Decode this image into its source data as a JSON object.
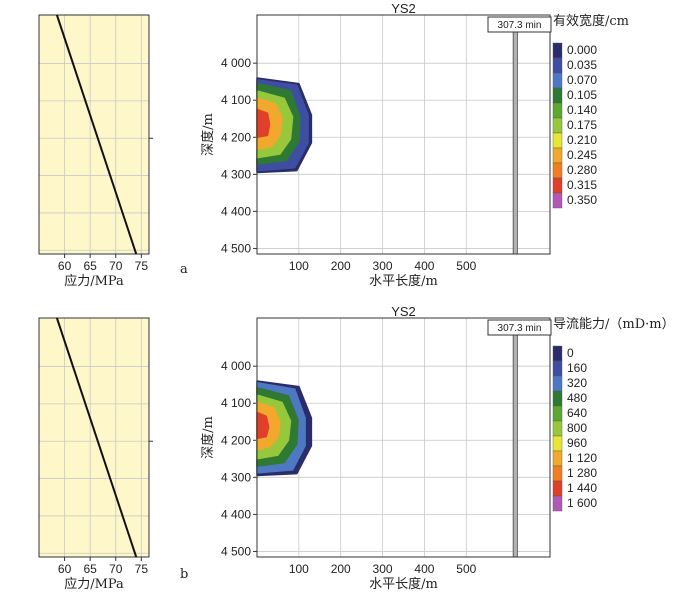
{
  "chart_data": [
    {
      "panel": "a",
      "stress_plot": {
        "type": "line",
        "xlabel": "应力/MPa",
        "xticks": [
          60,
          65,
          70,
          75
        ],
        "xlim": [
          55,
          76.5
        ],
        "ylim": [
          3870,
          4510
        ],
        "x": [
          58.5,
          74
        ],
        "y": [
          3870,
          4510
        ]
      },
      "contour_plot": {
        "type": "heatmap",
        "title": "YS2",
        "xlabel": "水平长度/m",
        "ylabel": "深度/m",
        "xticks": [
          100,
          200,
          300,
          400,
          500
        ],
        "xlim": [
          0,
          700
        ],
        "yticks": [
          "4 000",
          "4 100",
          "4 200",
          "4 300",
          "4 400",
          "4 500"
        ],
        "ytick_values": [
          4000,
          4100,
          4200,
          4300,
          4400,
          4500
        ],
        "ylim": [
          3870,
          4515
        ],
        "time_label": "307.3 min",
        "legend_title": "有效宽度/cm",
        "legend_values": [
          "0.000",
          "0.035",
          "0.070",
          "0.105",
          "0.140",
          "0.175",
          "0.210",
          "0.245",
          "0.280",
          "0.315",
          "0.350"
        ],
        "contours": [
          {
            "level": 0,
            "x": [
              0,
              100,
              130,
              130,
              95,
              0
            ],
            "y": [
              4040,
              4055,
              4140,
              4215,
              4290,
              4295
            ]
          },
          {
            "level": 1,
            "x": [
              0,
              95,
              122,
              122,
              90,
              0
            ],
            "y": [
              4045,
              4060,
              4140,
              4215,
              4282,
              4290
            ]
          },
          {
            "level": 3,
            "x": [
              0,
              80,
              102,
              100,
              70,
              0
            ],
            "y": [
              4055,
              4075,
              4145,
              4210,
              4262,
              4272
            ]
          },
          {
            "level": 5,
            "x": [
              0,
              65,
              85,
              80,
              55,
              0
            ],
            "y": [
              4075,
              4095,
              4145,
              4205,
              4245,
              4255
            ]
          },
          {
            "level": 7,
            "x": [
              0,
              45,
              60,
              55,
              35,
              0
            ],
            "y": [
              4095,
              4110,
              4150,
              4195,
              4225,
              4232
            ]
          },
          {
            "level": 9,
            "x": [
              0,
              25,
              30,
              25,
              0
            ],
            "y": [
              4125,
              4135,
              4165,
              4195,
              4200
            ]
          }
        ],
        "well": {
          "x_start": 612,
          "x_end": 622
        }
      }
    },
    {
      "panel": "b",
      "stress_plot": {
        "type": "line",
        "xlabel": "应力/MPa",
        "xticks": [
          60,
          65,
          70,
          75
        ],
        "xlim": [
          55,
          76.5
        ],
        "ylim": [
          3870,
          4510
        ],
        "x": [
          58.5,
          74
        ],
        "y": [
          3870,
          4510
        ]
      },
      "contour_plot": {
        "type": "heatmap",
        "title": "YS2",
        "xlabel": "水平长度/m",
        "ylabel": "深度/m",
        "xticks": [
          100,
          200,
          300,
          400,
          500
        ],
        "xlim": [
          0,
          700
        ],
        "yticks": [
          "4 000",
          "4 100",
          "4 200",
          "4 300",
          "4 400",
          "4 500"
        ],
        "ytick_values": [
          4000,
          4100,
          4200,
          4300,
          4400,
          4500
        ],
        "ylim": [
          3870,
          4515
        ],
        "time_label": "307.3 min",
        "legend_title": "导流能力/（mD·m）",
        "legend_values": [
          "0",
          "160",
          "320",
          "480",
          "640",
          "800",
          "960",
          "1 120",
          "1 280",
          "1 440",
          "1 600"
        ],
        "contours": [
          {
            "level": 0,
            "x": [
              0,
              100,
              130,
              130,
              95,
              0
            ],
            "y": [
              4040,
              4055,
              4140,
              4215,
              4290,
              4295
            ]
          },
          {
            "level": 2,
            "x": [
              0,
              90,
              115,
              115,
              85,
              0
            ],
            "y": [
              4045,
              4062,
              4140,
              4215,
              4280,
              4288
            ]
          },
          {
            "level": 3,
            "x": [
              0,
              75,
              98,
              95,
              65,
              0
            ],
            "y": [
              4058,
              4080,
              4145,
              4210,
              4260,
              4270
            ]
          },
          {
            "level": 5,
            "x": [
              0,
              60,
              80,
              75,
              50,
              0
            ],
            "y": [
              4078,
              4098,
              4148,
              4200,
              4240,
              4250
            ]
          },
          {
            "level": 7,
            "x": [
              0,
              40,
              55,
              50,
              30,
              0
            ],
            "y": [
              4098,
              4112,
              4152,
              4192,
              4218,
              4225
            ]
          },
          {
            "level": 9,
            "x": [
              0,
              22,
              28,
              22,
              0
            ],
            "y": [
              4125,
              4135,
              4165,
              4190,
              4195
            ]
          }
        ],
        "well": {
          "x_start": 612,
          "x_end": 622
        }
      }
    }
  ],
  "panel_labels": [
    "a",
    "b"
  ],
  "colors": {
    "stress_bg": "#fdf7c9",
    "grid": "#c8c8c8",
    "well_fill": "#b3b3b3",
    "legend_colors": [
      "#2b2d6b",
      "#3e4fa2",
      "#4f78c4",
      "#2e7a32",
      "#5ea832",
      "#97c83c",
      "#e6e633",
      "#f2a82c",
      "#f07f22",
      "#e0402a",
      "#b05ab6"
    ]
  }
}
